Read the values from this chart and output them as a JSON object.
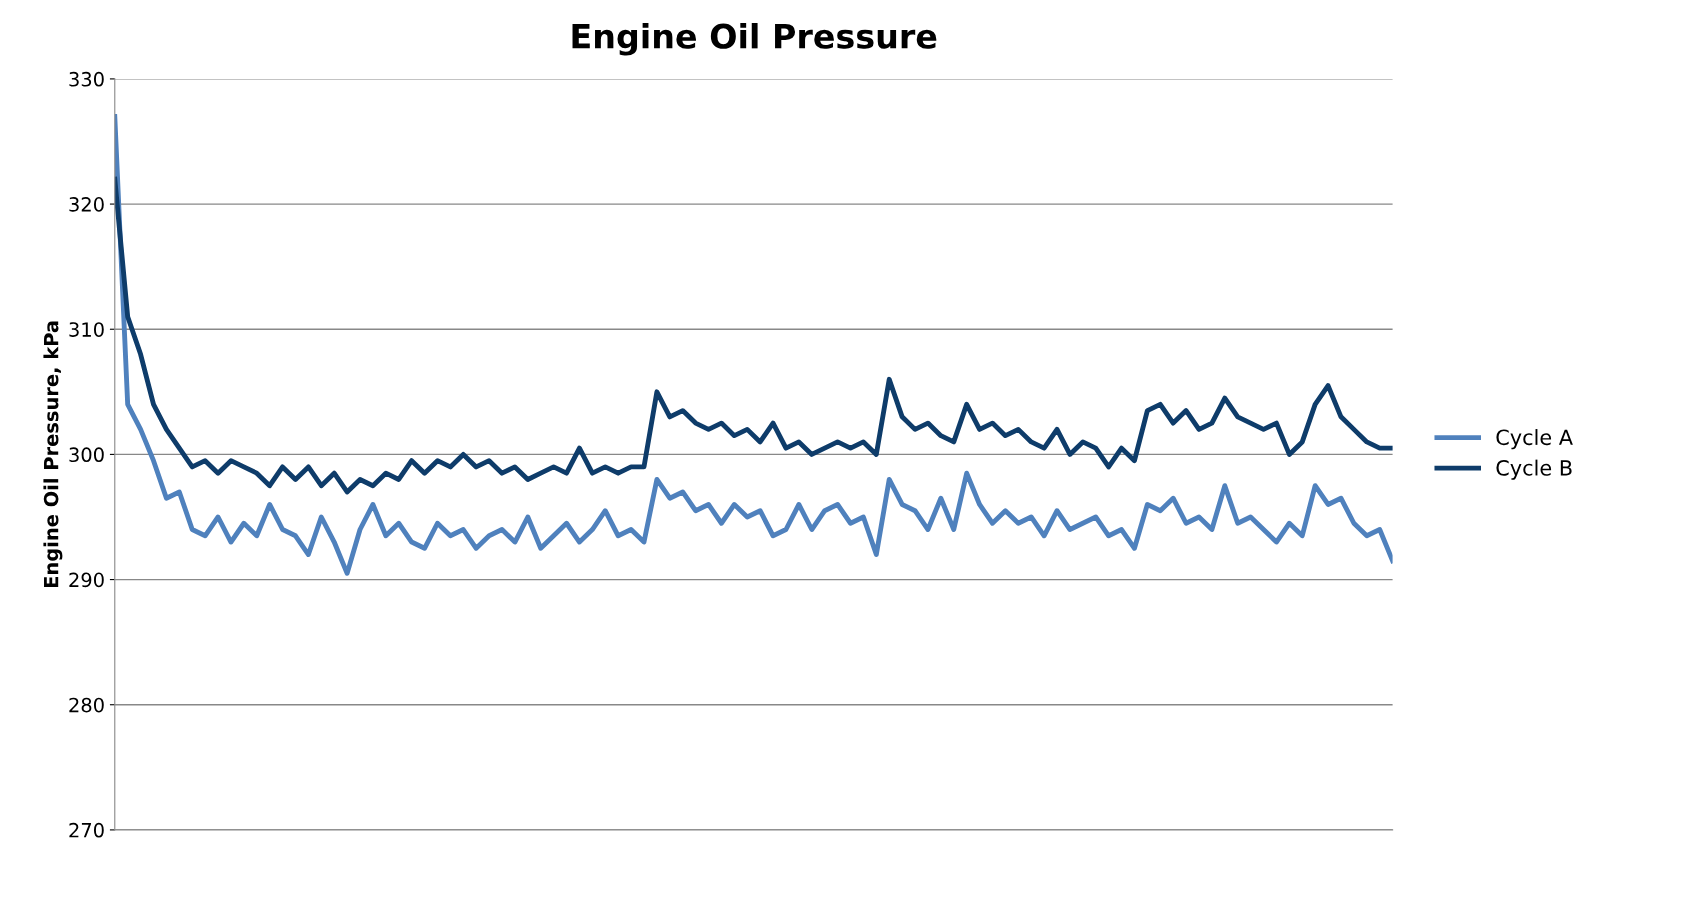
{
  "chart_data": {
    "type": "line",
    "title": "Engine Oil Pressure",
    "ylabel": "Engine Oil Pressure, kPa",
    "categories": [
      null,
      null,
      null,
      null,
      null,
      null,
      null,
      null,
      null,
      null,
      null,
      null,
      null,
      null,
      null,
      null,
      null,
      null,
      null,
      null,
      null,
      null,
      null,
      null,
      null,
      null,
      null,
      null,
      null,
      null,
      null,
      null,
      null,
      null,
      null,
      null,
      null,
      null,
      null,
      null,
      null,
      null,
      null,
      null,
      null,
      null,
      null,
      null,
      null,
      null,
      null,
      null,
      null,
      null,
      null,
      null,
      null,
      null,
      null,
      null,
      null,
      null,
      null,
      null,
      null,
      null,
      null,
      null,
      null,
      null,
      null,
      null,
      null,
      null,
      null,
      null,
      null,
      null,
      null,
      null,
      null,
      null,
      null,
      null,
      null,
      null,
      null,
      null,
      null,
      null,
      null,
      null,
      null,
      null,
      null,
      null,
      null,
      null,
      null,
      null
    ],
    "series": [
      {
        "name": "Cycle A",
        "color": "#4f81bd",
        "values": [
          327,
          304,
          302,
          299.5,
          296.5,
          297,
          294,
          293.5,
          295,
          293,
          294.5,
          293.5,
          296,
          294,
          293.5,
          292,
          295,
          293,
          290.5,
          294,
          296,
          293.5,
          294.5,
          293,
          292.5,
          294.5,
          293.5,
          294,
          292.5,
          293.5,
          294,
          293,
          295,
          292.5,
          293.5,
          294.5,
          293,
          294,
          295.5,
          293.5,
          294,
          293,
          298,
          296.5,
          297,
          295.5,
          296,
          294.5,
          296,
          295,
          295.5,
          293.5,
          294,
          296,
          294,
          295.5,
          296,
          294.5,
          295,
          292,
          298,
          296,
          295.5,
          294,
          296.5,
          294,
          298.5,
          296,
          294.5,
          295.5,
          294.5,
          295,
          293.5,
          295.5,
          294,
          294.5,
          295,
          293.5,
          294,
          292.5,
          296,
          295.5,
          296.5,
          294.5,
          295,
          294,
          297.5,
          294.5,
          295,
          294,
          293,
          294.5,
          293.5,
          297.5,
          296,
          296.5,
          294.5,
          293.5,
          294,
          291.5
        ]
      },
      {
        "name": "Cycle B",
        "color": "#0e3c6a",
        "values": [
          322,
          311,
          308,
          304,
          302,
          300.5,
          299,
          299.5,
          298.5,
          299.5,
          299,
          298.5,
          297.5,
          299,
          298,
          299,
          297.5,
          298.5,
          297,
          298,
          297.5,
          298.5,
          298,
          299.5,
          298.5,
          299.5,
          299,
          300,
          299,
          299.5,
          298.5,
          299,
          298,
          298.5,
          299,
          298.5,
          300.5,
          298.5,
          299,
          298.5,
          299,
          299,
          305,
          303,
          303.5,
          302.5,
          302,
          302.5,
          301.5,
          302,
          301,
          302.5,
          300.5,
          301,
          300,
          300.5,
          301,
          300.5,
          301,
          300,
          306,
          303,
          302,
          302.5,
          301.5,
          301,
          304,
          302,
          302.5,
          301.5,
          302,
          301,
          300.5,
          302,
          300,
          301,
          300.5,
          299,
          300.5,
          299.5,
          303.5,
          304,
          302.5,
          303.5,
          302,
          302.5,
          304.5,
          303,
          302.5,
          302,
          302.5,
          300,
          301,
          304,
          305.5,
          303,
          302,
          301,
          300.5,
          300.5
        ]
      }
    ],
    "ylim": [
      270,
      330
    ],
    "yticks": [
      270,
      280,
      290,
      300,
      310,
      320,
      330
    ],
    "grid": "y",
    "legend": "right",
    "marker": "none",
    "line_style": "solid"
  }
}
